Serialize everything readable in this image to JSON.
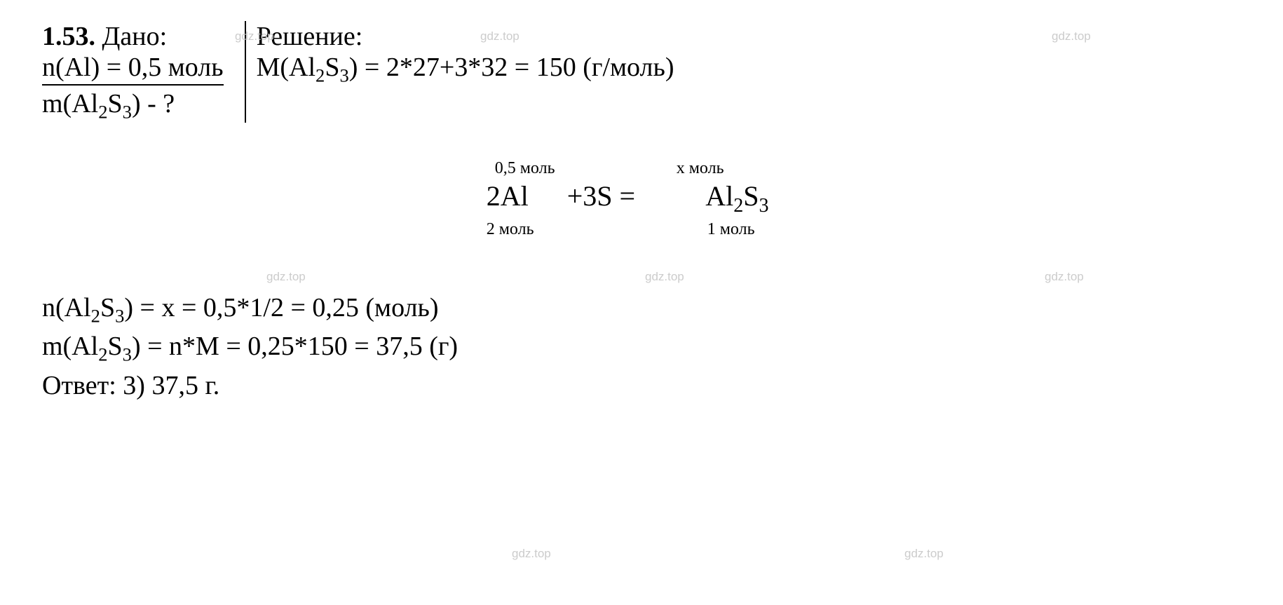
{
  "problem": {
    "number": "1.53.",
    "given_label": "Дано:",
    "given_line2": "n(Al) = 0,5 моль",
    "find": "m(Al",
    "find_sub1": "2",
    "find_mid": "S",
    "find_sub2": "3",
    "find_end": ") - ?"
  },
  "solution": {
    "label": "Решение:",
    "molar_prefix": "M(Al",
    "molar_sub1": "2",
    "molar_mid": "S",
    "molar_sub2": "3",
    "molar_end": ") = 2*27+3*32 = 150 (г/моль)"
  },
  "equation": {
    "top_al": "0,5 моль",
    "top_als": "х моль",
    "coef_al": "2Al",
    "plus": " + ",
    "coef_s": "3S",
    "equals": " = ",
    "product_prefix": "Al",
    "product_sub1": "2",
    "product_mid": "S",
    "product_sub2": "3",
    "bottom_al": "2 моль",
    "bottom_als": "1 моль"
  },
  "calculations": {
    "line1_prefix": "n(Al",
    "line1_sub1": "2",
    "line1_mid": "S",
    "line1_sub2": "3",
    "line1_end": ") = х = 0,5*1/2 = 0,25 (моль)",
    "line2_prefix": "m(Al",
    "line2_sub1": "2",
    "line2_mid": "S",
    "line2_sub2": "3",
    "line2_end": ") = n*M = 0,25*150 = 37,5 (г)",
    "answer": "Ответ: 3) 37,5 г."
  },
  "watermark": "gdz.top",
  "style": {
    "background_color": "#ffffff",
    "text_color": "#000000",
    "watermark_color": "#cccccc",
    "font_family": "Times New Roman",
    "base_fontsize": 38,
    "annotation_fontsize": 24,
    "equation_fontsize": 40,
    "watermark_fontsize": 17,
    "divider_width": 2,
    "underline_width": 2
  }
}
